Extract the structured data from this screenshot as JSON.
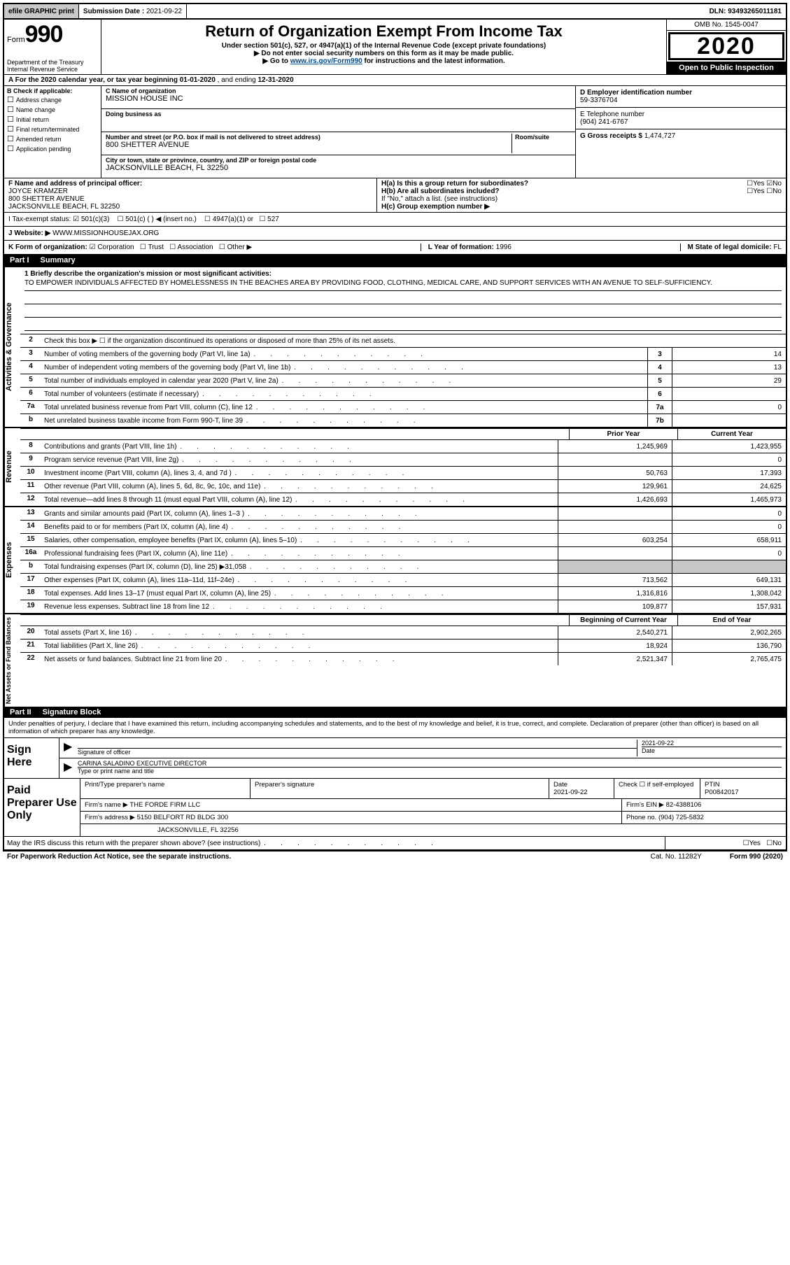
{
  "topbar": {
    "efile": "efile GRAPHIC print",
    "submission_label": "Submission Date :",
    "submission_date": "2021-09-22",
    "dln_label": "DLN:",
    "dln": "93493265011181"
  },
  "header": {
    "form_prefix": "Form",
    "form_number": "990",
    "title": "Return of Organization Exempt From Income Tax",
    "sub1": "Under section 501(c), 527, or 4947(a)(1) of the Internal Revenue Code (except private foundations)",
    "sub2": "Do not enter social security numbers on this form as it may be made public.",
    "sub3_pre": "Go to ",
    "sub3_link": "www.irs.gov/Form990",
    "sub3_post": " for instructions and the latest information.",
    "dept": "Department of the Treasury\nInternal Revenue Service",
    "omb": "OMB No. 1545-0047",
    "year": "2020",
    "open": "Open to Public Inspection"
  },
  "period": {
    "text_a": "A For the 2020 calendar year, or tax year beginning ",
    "begin": "01-01-2020",
    "text_b": " , and ending ",
    "end": "12-31-2020"
  },
  "boxB": {
    "label": "B Check if applicable:",
    "opts": [
      "Address change",
      "Name change",
      "Initial return",
      "Final return/terminated",
      "Amended return",
      "Application pending"
    ]
  },
  "boxC": {
    "name_label": "C Name of organization",
    "name": "MISSION HOUSE INC",
    "dba_label": "Doing business as",
    "dba": "",
    "addr_label": "Number and street (or P.O. box if mail is not delivered to street address)",
    "room_label": "Room/suite",
    "addr": "800 SHETTER AVENUE",
    "city_label": "City or town, state or province, country, and ZIP or foreign postal code",
    "city": "JACKSONVILLE BEACH, FL  32250"
  },
  "boxD": {
    "label": "D Employer identification number",
    "val": "59-3376704"
  },
  "boxE": {
    "label": "E Telephone number",
    "val": "(904) 241-6767"
  },
  "boxG": {
    "label": "G Gross receipts $",
    "val": "1,474,727"
  },
  "boxF": {
    "label": "F Name and address of principal officer:",
    "name": "JOYCE KRAMZER",
    "addr1": "800 SHETTER AVENUE",
    "addr2": "JACKSONVILLE BEACH, FL  32250"
  },
  "boxH": {
    "a": "H(a)  Is this a group return for subordinates?",
    "a_no": "No",
    "b": "H(b)  Are all subordinates included?",
    "b_note": "If \"No,\" attach a list. (see instructions)",
    "c": "H(c)  Group exemption number ▶"
  },
  "taxExempt": {
    "label": "I  Tax-exempt status:",
    "opt1": "501(c)(3)",
    "opt2": "501(c) (   ) ◀ (insert no.)",
    "opt3": "4947(a)(1) or",
    "opt4": "527"
  },
  "boxJ": {
    "label": "J  Website: ▶",
    "val": "WWW.MISSIONHOUSEJAX.ORG"
  },
  "boxK": {
    "label": "K Form of organization:",
    "corp": "Corporation",
    "trust": "Trust",
    "assoc": "Association",
    "other": "Other ▶",
    "L_label": "L Year of formation:",
    "L_val": "1996",
    "M_label": "M State of legal domicile:",
    "M_val": "FL"
  },
  "part1": {
    "num": "Part I",
    "title": "Summary"
  },
  "mission": {
    "q": "1  Briefly describe the organization's mission or most significant activities:",
    "text": "TO EMPOWER INDIVIDUALS AFFECTED BY HOMELESSNESS IN THE BEACHES AREA BY PROVIDING FOOD, CLOTHING, MEDICAL CARE, AND SUPPORT SERVICES WITH AN AVENUE TO SELF-SUFFICIENCY."
  },
  "line2": "Check this box ▶ ☐  if the organization discontinued its operations or disposed of more than 25% of its net assets.",
  "gov_lines": [
    {
      "n": "3",
      "t": "Number of voting members of the governing body (Part VI, line 1a)",
      "box": "3",
      "v": "14"
    },
    {
      "n": "4",
      "t": "Number of independent voting members of the governing body (Part VI, line 1b)",
      "box": "4",
      "v": "13"
    },
    {
      "n": "5",
      "t": "Total number of individuals employed in calendar year 2020 (Part V, line 2a)",
      "box": "5",
      "v": "29"
    },
    {
      "n": "6",
      "t": "Total number of volunteers (estimate if necessary)",
      "box": "6",
      "v": ""
    },
    {
      "n": "7a",
      "t": "Total unrelated business revenue from Part VIII, column (C), line 12",
      "box": "7a",
      "v": "0"
    },
    {
      "n": "b",
      "t": "Net unrelated business taxable income from Form 990-T, line 39",
      "box": "7b",
      "v": ""
    }
  ],
  "col_headers": {
    "prior": "Prior Year",
    "current": "Current Year"
  },
  "revenue_lines": [
    {
      "n": "8",
      "t": "Contributions and grants (Part VIII, line 1h)",
      "p": "1,245,969",
      "c": "1,423,955"
    },
    {
      "n": "9",
      "t": "Program service revenue (Part VIII, line 2g)",
      "p": "",
      "c": "0"
    },
    {
      "n": "10",
      "t": "Investment income (Part VIII, column (A), lines 3, 4, and 7d )",
      "p": "50,763",
      "c": "17,393"
    },
    {
      "n": "11",
      "t": "Other revenue (Part VIII, column (A), lines 5, 6d, 8c, 9c, 10c, and 11e)",
      "p": "129,961",
      "c": "24,625"
    },
    {
      "n": "12",
      "t": "Total revenue—add lines 8 through 11 (must equal Part VIII, column (A), line 12)",
      "p": "1,426,693",
      "c": "1,465,973"
    }
  ],
  "expense_lines": [
    {
      "n": "13",
      "t": "Grants and similar amounts paid (Part IX, column (A), lines 1–3 )",
      "p": "",
      "c": "0"
    },
    {
      "n": "14",
      "t": "Benefits paid to or for members (Part IX, column (A), line 4)",
      "p": "",
      "c": "0"
    },
    {
      "n": "15",
      "t": "Salaries, other compensation, employee benefits (Part IX, column (A), lines 5–10)",
      "p": "603,254",
      "c": "658,911"
    },
    {
      "n": "16a",
      "t": "Professional fundraising fees (Part IX, column (A), line 11e)",
      "p": "",
      "c": "0"
    },
    {
      "n": "b",
      "t": "Total fundraising expenses (Part IX, column (D), line 25) ▶31,058",
      "p": "shaded",
      "c": "shaded"
    },
    {
      "n": "17",
      "t": "Other expenses (Part IX, column (A), lines 11a–11d, 11f–24e)",
      "p": "713,562",
      "c": "649,131"
    },
    {
      "n": "18",
      "t": "Total expenses. Add lines 13–17 (must equal Part IX, column (A), line 25)",
      "p": "1,316,816",
      "c": "1,308,042"
    },
    {
      "n": "19",
      "t": "Revenue less expenses. Subtract line 18 from line 12",
      "p": "109,877",
      "c": "157,931"
    }
  ],
  "net_headers": {
    "begin": "Beginning of Current Year",
    "end": "End of Year"
  },
  "net_lines": [
    {
      "n": "20",
      "t": "Total assets (Part X, line 16)",
      "p": "2,540,271",
      "c": "2,902,265"
    },
    {
      "n": "21",
      "t": "Total liabilities (Part X, line 26)",
      "p": "18,924",
      "c": "136,790"
    },
    {
      "n": "22",
      "t": "Net assets or fund balances. Subtract line 21 from line 20",
      "p": "2,521,347",
      "c": "2,765,475"
    }
  ],
  "part2": {
    "num": "Part II",
    "title": "Signature Block"
  },
  "sig_intro": "Under penalties of perjury, I declare that I have examined this return, including accompanying schedules and statements, and to the best of my knowledge and belief, it is true, correct, and complete. Declaration of preparer (other than officer) is based on all information of which preparer has any knowledge.",
  "sign": {
    "here": "Sign Here",
    "officer_label": "Signature of officer",
    "date_label": "Date",
    "date": "2021-09-22",
    "name": "CARINA SALADINO  EXECUTIVE DIRECTOR",
    "name_label": "Type or print name and title"
  },
  "prep": {
    "label": "Paid Preparer Use Only",
    "h1": "Print/Type preparer's name",
    "h2": "Preparer's signature",
    "h3": "Date",
    "h3v": "2021-09-22",
    "h4": "Check ☐ if self-employed",
    "h5": "PTIN",
    "h5v": "P00842017",
    "firm_label": "Firm's name    ▶",
    "firm": "THE FORDE FIRM LLC",
    "ein_label": "Firm's EIN ▶",
    "ein": "82-4388106",
    "addr_label": "Firm's address ▶",
    "addr1": "5150 BELFORT RD BLDG 300",
    "addr2": "JACKSONVILLE, FL  32256",
    "phone_label": "Phone no.",
    "phone": "(904) 725-5832"
  },
  "discuss": "May the IRS discuss this return with the preparer shown above? (see instructions)",
  "footer": {
    "left": "For Paperwork Reduction Act Notice, see the separate instructions.",
    "mid": "Cat. No. 11282Y",
    "right": "Form 990 (2020)"
  }
}
